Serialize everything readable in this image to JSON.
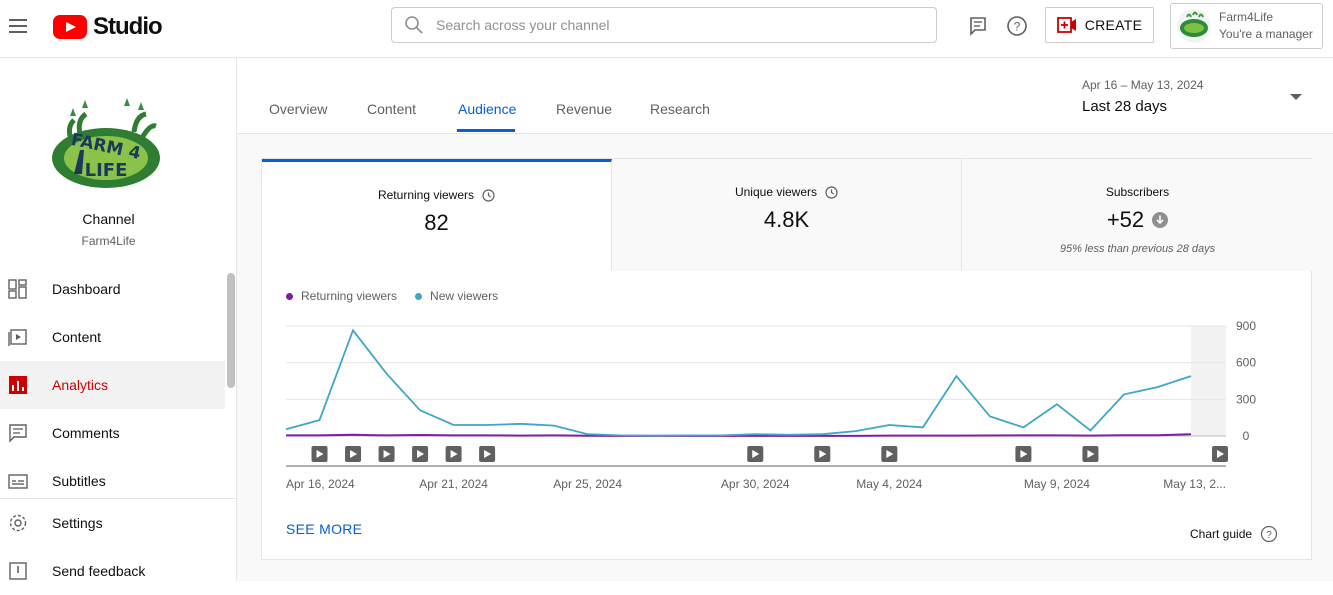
{
  "app": {
    "logo_text": "Studio"
  },
  "search": {
    "placeholder": "Search across your channel"
  },
  "topbar": {
    "create_label": "CREATE"
  },
  "account": {
    "name": "Farm4Life",
    "role": "You're a manager"
  },
  "sidebar": {
    "channel_title": "Channel",
    "channel_name": "Farm4Life",
    "items": [
      {
        "label": "Dashboard",
        "icon": "dashboard-icon"
      },
      {
        "label": "Content",
        "icon": "content-icon"
      },
      {
        "label": "Analytics",
        "icon": "analytics-icon",
        "active": true
      },
      {
        "label": "Comments",
        "icon": "comments-icon"
      },
      {
        "label": "Subtitles",
        "icon": "subtitles-icon"
      }
    ],
    "settings_label": "Settings",
    "feedback_label": "Send feedback"
  },
  "tabs": [
    {
      "label": "Overview"
    },
    {
      "label": "Content"
    },
    {
      "label": "Audience",
      "active": true
    },
    {
      "label": "Revenue"
    },
    {
      "label": "Research"
    }
  ],
  "date_picker": {
    "range": "Apr 16 – May 13, 2024",
    "label": "Last 28 days"
  },
  "metrics": [
    {
      "label": "Returning viewers",
      "value": "82",
      "active": true
    },
    {
      "label": "Unique viewers",
      "value": "4.8K"
    },
    {
      "label": "Subscribers",
      "value": "+52",
      "note": "95% less than previous 28 days"
    }
  ],
  "legend": [
    {
      "name": "Returning viewers",
      "color": "#7b1fa2"
    },
    {
      "name": "New viewers",
      "color": "#3ea6c7"
    }
  ],
  "chart_data": {
    "type": "line",
    "x": [
      "Apr 16, 2024",
      "Apr 17",
      "Apr 18",
      "Apr 19",
      "Apr 20",
      "Apr 21, 2024",
      "Apr 22",
      "Apr 23",
      "Apr 24",
      "Apr 25, 2024",
      "Apr 26",
      "Apr 27",
      "Apr 28",
      "Apr 29",
      "Apr 30, 2024",
      "May 1",
      "May 2",
      "May 3",
      "May 4, 2024",
      "May 5",
      "May 6",
      "May 7",
      "May 8",
      "May 9, 2024",
      "May 10",
      "May 11",
      "May 12",
      "May 13, 2024"
    ],
    "series": [
      {
        "name": "Returning viewers",
        "color": "#7b1fa2",
        "values": [
          5,
          5,
          10,
          5,
          8,
          5,
          5,
          3,
          5,
          2,
          1,
          1,
          1,
          1,
          1,
          1,
          1,
          1,
          3,
          3,
          3,
          4,
          5,
          5,
          3,
          6,
          6,
          15
        ]
      },
      {
        "name": "New viewers",
        "color": "#3ea6c7",
        "values": [
          55,
          130,
          865,
          510,
          210,
          90,
          90,
          100,
          85,
          15,
          5,
          3,
          5,
          5,
          15,
          10,
          15,
          40,
          90,
          70,
          490,
          160,
          70,
          260,
          45,
          340,
          400,
          490
        ]
      }
    ],
    "yticks": [
      0,
      300,
      600,
      900
    ],
    "ylim": [
      0,
      900
    ],
    "xtick_labels": [
      "Apr 16, 2024",
      "Apr 21, 2024",
      "Apr 25, 2024",
      "Apr 30, 2024",
      "May 4, 2024",
      "May 9, 2024",
      "May 13, 2..."
    ],
    "xtick_indices": [
      0,
      5,
      9,
      14,
      18,
      23,
      27
    ],
    "video_markers": [
      1,
      2,
      3,
      4,
      5,
      6,
      14,
      16,
      18,
      22,
      24,
      27
    ]
  },
  "footer": {
    "see_more": "SEE MORE",
    "chart_guide": "Chart guide"
  }
}
